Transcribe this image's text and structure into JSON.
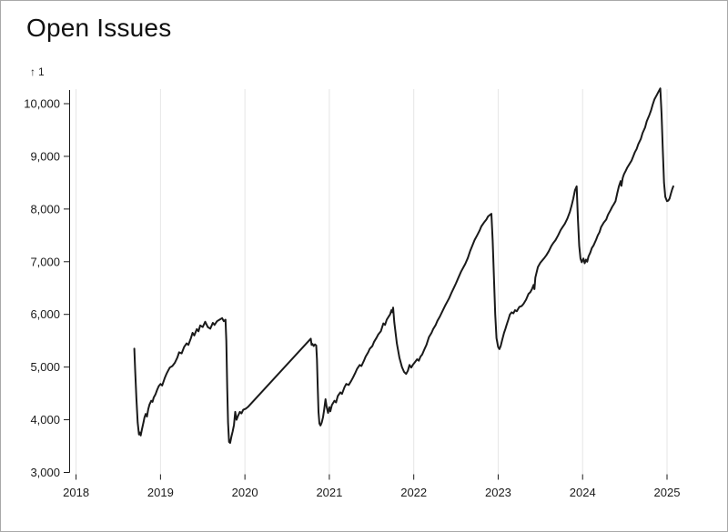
{
  "title": "Open Issues",
  "y_axis": {
    "arrow": "↑",
    "label": "1"
  },
  "colors": {
    "background": "#ffffff",
    "border": "#a9a9a9",
    "title_text": "#111111",
    "axis_text": "#1a1a1a",
    "grid_line": "#e6e6e6",
    "data_line": "#1a1a1a"
  },
  "chart_data": {
    "type": "line",
    "title": "Open Issues",
    "xlabel": "",
    "ylabel": "1",
    "legend": "none",
    "grid": "vertical-only",
    "x_domain": [
      2018,
      2025.1
    ],
    "y_domain": [
      3000,
      10300
    ],
    "x_ticks": [
      {
        "label": "2018",
        "value": 2018
      },
      {
        "label": "2019",
        "value": 2019
      },
      {
        "label": "2020",
        "value": 2020
      },
      {
        "label": "2021",
        "value": 2021
      },
      {
        "label": "2022",
        "value": 2022
      },
      {
        "label": "2023",
        "value": 2023
      },
      {
        "label": "2024",
        "value": 2024
      },
      {
        "label": "2025",
        "value": 2025
      }
    ],
    "y_ticks": [
      {
        "label": "3,000",
        "value": 3000
      },
      {
        "label": "4,000",
        "value": 4000
      },
      {
        "label": "5,000",
        "value": 5000
      },
      {
        "label": "6,000",
        "value": 6000
      },
      {
        "label": "7,000",
        "value": 7000
      },
      {
        "label": "8,000",
        "value": 8000
      },
      {
        "label": "9,000",
        "value": 9000
      },
      {
        "label": "10,000",
        "value": 10000
      }
    ],
    "series": [
      {
        "name": "1",
        "points": [
          [
            2018.69,
            5350
          ],
          [
            2018.7,
            4950
          ],
          [
            2018.715,
            4400
          ],
          [
            2018.73,
            3950
          ],
          [
            2018.745,
            3720
          ],
          [
            2018.755,
            3760
          ],
          [
            2018.765,
            3700
          ],
          [
            2018.78,
            3820
          ],
          [
            2018.8,
            3960
          ],
          [
            2018.81,
            4040
          ],
          [
            2018.825,
            4110
          ],
          [
            2018.84,
            4060
          ],
          [
            2018.855,
            4200
          ],
          [
            2018.87,
            4290
          ],
          [
            2018.89,
            4360
          ],
          [
            2018.905,
            4340
          ],
          [
            2018.92,
            4420
          ],
          [
            2018.94,
            4480
          ],
          [
            2018.96,
            4570
          ],
          [
            2018.98,
            4640
          ],
          [
            2019.0,
            4680
          ],
          [
            2019.02,
            4650
          ],
          [
            2019.05,
            4790
          ],
          [
            2019.07,
            4870
          ],
          [
            2019.09,
            4930
          ],
          [
            2019.11,
            4990
          ],
          [
            2019.14,
            5020
          ],
          [
            2019.17,
            5080
          ],
          [
            2019.2,
            5180
          ],
          [
            2019.22,
            5280
          ],
          [
            2019.25,
            5260
          ],
          [
            2019.28,
            5380
          ],
          [
            2019.31,
            5450
          ],
          [
            2019.33,
            5420
          ],
          [
            2019.36,
            5550
          ],
          [
            2019.38,
            5650
          ],
          [
            2019.4,
            5600
          ],
          [
            2019.43,
            5720
          ],
          [
            2019.45,
            5680
          ],
          [
            2019.47,
            5790
          ],
          [
            2019.5,
            5760
          ],
          [
            2019.53,
            5860
          ],
          [
            2019.56,
            5760
          ],
          [
            2019.59,
            5730
          ],
          [
            2019.62,
            5840
          ],
          [
            2019.64,
            5800
          ],
          [
            2019.67,
            5870
          ],
          [
            2019.7,
            5900
          ],
          [
            2019.73,
            5930
          ],
          [
            2019.75,
            5870
          ],
          [
            2019.77,
            5900
          ],
          [
            2019.78,
            5500
          ],
          [
            2019.79,
            4600
          ],
          [
            2019.8,
            3950
          ],
          [
            2019.812,
            3580
          ],
          [
            2019.825,
            3560
          ],
          [
            2019.84,
            3680
          ],
          [
            2019.855,
            3780
          ],
          [
            2019.87,
            3900
          ],
          [
            2019.885,
            4150
          ],
          [
            2019.9,
            4000
          ],
          [
            2019.92,
            4080
          ],
          [
            2019.94,
            4150
          ],
          [
            2019.96,
            4120
          ],
          [
            2019.98,
            4190
          ],
          [
            2020.01,
            4210
          ],
          [
            2020.04,
            4250
          ],
          [
            2020.78,
            5540
          ],
          [
            2020.79,
            5420
          ],
          [
            2020.8,
            5440
          ],
          [
            2020.815,
            5400
          ],
          [
            2020.83,
            5430
          ],
          [
            2020.845,
            5410
          ],
          [
            2020.853,
            5150
          ],
          [
            2020.862,
            4650
          ],
          [
            2020.872,
            4150
          ],
          [
            2020.882,
            3930
          ],
          [
            2020.895,
            3890
          ],
          [
            2020.91,
            3950
          ],
          [
            2020.925,
            4050
          ],
          [
            2020.94,
            4200
          ],
          [
            2020.955,
            4390
          ],
          [
            2020.97,
            4230
          ],
          [
            2020.985,
            4130
          ],
          [
            2021.0,
            4240
          ],
          [
            2021.012,
            4160
          ],
          [
            2021.03,
            4280
          ],
          [
            2021.06,
            4360
          ],
          [
            2021.08,
            4330
          ],
          [
            2021.1,
            4450
          ],
          [
            2021.13,
            4520
          ],
          [
            2021.15,
            4490
          ],
          [
            2021.18,
            4620
          ],
          [
            2021.2,
            4680
          ],
          [
            2021.23,
            4660
          ],
          [
            2021.26,
            4740
          ],
          [
            2021.28,
            4800
          ],
          [
            2021.31,
            4900
          ],
          [
            2021.33,
            4970
          ],
          [
            2021.36,
            5040
          ],
          [
            2021.38,
            5020
          ],
          [
            2021.41,
            5120
          ],
          [
            2021.43,
            5200
          ],
          [
            2021.46,
            5280
          ],
          [
            2021.48,
            5350
          ],
          [
            2021.51,
            5400
          ],
          [
            2021.53,
            5480
          ],
          [
            2021.56,
            5560
          ],
          [
            2021.58,
            5620
          ],
          [
            2021.61,
            5680
          ],
          [
            2021.64,
            5830
          ],
          [
            2021.66,
            5800
          ],
          [
            2021.68,
            5900
          ],
          [
            2021.7,
            5950
          ],
          [
            2021.72,
            6000
          ],
          [
            2021.735,
            6080
          ],
          [
            2021.745,
            6040
          ],
          [
            2021.755,
            6130
          ],
          [
            2021.77,
            5850
          ],
          [
            2021.8,
            5450
          ],
          [
            2021.83,
            5180
          ],
          [
            2021.86,
            5000
          ],
          [
            2021.885,
            4910
          ],
          [
            2021.91,
            4870
          ],
          [
            2021.93,
            4930
          ],
          [
            2021.95,
            5040
          ],
          [
            2021.97,
            4990
          ],
          [
            2021.99,
            5045
          ],
          [
            2022.01,
            5085
          ],
          [
            2022.04,
            5150
          ],
          [
            2022.06,
            5120
          ],
          [
            2022.08,
            5200
          ],
          [
            2022.1,
            5240
          ],
          [
            2022.13,
            5350
          ],
          [
            2022.15,
            5420
          ],
          [
            2022.18,
            5570
          ],
          [
            2022.21,
            5650
          ],
          [
            2022.23,
            5720
          ],
          [
            2022.26,
            5800
          ],
          [
            2022.28,
            5880
          ],
          [
            2022.31,
            5960
          ],
          [
            2022.34,
            6060
          ],
          [
            2022.37,
            6160
          ],
          [
            2022.4,
            6250
          ],
          [
            2022.42,
            6310
          ],
          [
            2022.45,
            6420
          ],
          [
            2022.48,
            6520
          ],
          [
            2022.5,
            6590
          ],
          [
            2022.53,
            6700
          ],
          [
            2022.56,
            6810
          ],
          [
            2022.59,
            6900
          ],
          [
            2022.61,
            6960
          ],
          [
            2022.64,
            7070
          ],
          [
            2022.67,
            7210
          ],
          [
            2022.7,
            7330
          ],
          [
            2022.72,
            7410
          ],
          [
            2022.75,
            7500
          ],
          [
            2022.78,
            7590
          ],
          [
            2022.8,
            7670
          ],
          [
            2022.83,
            7740
          ],
          [
            2022.86,
            7800
          ],
          [
            2022.88,
            7860
          ],
          [
            2022.905,
            7890
          ],
          [
            2022.92,
            7910
          ],
          [
            2022.935,
            7400
          ],
          [
            2022.95,
            6700
          ],
          [
            2022.965,
            6000
          ],
          [
            2022.98,
            5550
          ],
          [
            2023.0,
            5380
          ],
          [
            2023.015,
            5340
          ],
          [
            2023.03,
            5400
          ],
          [
            2023.05,
            5530
          ],
          [
            2023.07,
            5650
          ],
          [
            2023.085,
            5720
          ],
          [
            2023.1,
            5800
          ],
          [
            2023.12,
            5900
          ],
          [
            2023.14,
            6000
          ],
          [
            2023.16,
            6040
          ],
          [
            2023.18,
            6020
          ],
          [
            2023.2,
            6080
          ],
          [
            2023.22,
            6060
          ],
          [
            2023.25,
            6140
          ],
          [
            2023.28,
            6160
          ],
          [
            2023.3,
            6200
          ],
          [
            2023.33,
            6280
          ],
          [
            2023.36,
            6390
          ],
          [
            2023.38,
            6420
          ],
          [
            2023.4,
            6480
          ],
          [
            2023.42,
            6560
          ],
          [
            2023.43,
            6480
          ],
          [
            2023.44,
            6700
          ],
          [
            2023.47,
            6900
          ],
          [
            2023.5,
            6980
          ],
          [
            2023.52,
            7020
          ],
          [
            2023.55,
            7080
          ],
          [
            2023.57,
            7120
          ],
          [
            2023.6,
            7200
          ],
          [
            2023.63,
            7300
          ],
          [
            2023.65,
            7350
          ],
          [
            2023.68,
            7410
          ],
          [
            2023.71,
            7500
          ],
          [
            2023.74,
            7600
          ],
          [
            2023.76,
            7650
          ],
          [
            2023.79,
            7720
          ],
          [
            2023.82,
            7820
          ],
          [
            2023.85,
            7950
          ],
          [
            2023.87,
            8070
          ],
          [
            2023.89,
            8200
          ],
          [
            2023.91,
            8360
          ],
          [
            2023.93,
            8430
          ],
          [
            2023.945,
            7800
          ],
          [
            2023.96,
            7300
          ],
          [
            2023.975,
            7060
          ],
          [
            2023.99,
            6990
          ],
          [
            2024.01,
            7060
          ],
          [
            2024.025,
            6970
          ],
          [
            2024.04,
            7040
          ],
          [
            2024.055,
            7000
          ],
          [
            2024.07,
            7100
          ],
          [
            2024.09,
            7170
          ],
          [
            2024.11,
            7260
          ],
          [
            2024.13,
            7310
          ],
          [
            2024.16,
            7420
          ],
          [
            2024.18,
            7500
          ],
          [
            2024.2,
            7560
          ],
          [
            2024.22,
            7660
          ],
          [
            2024.25,
            7740
          ],
          [
            2024.28,
            7800
          ],
          [
            2024.3,
            7890
          ],
          [
            2024.33,
            7975
          ],
          [
            2024.35,
            8040
          ],
          [
            2024.37,
            8090
          ],
          [
            2024.39,
            8150
          ],
          [
            2024.41,
            8300
          ],
          [
            2024.43,
            8430
          ],
          [
            2024.45,
            8530
          ],
          [
            2024.46,
            8440
          ],
          [
            2024.475,
            8590
          ],
          [
            2024.49,
            8660
          ],
          [
            2024.51,
            8720
          ],
          [
            2024.53,
            8790
          ],
          [
            2024.55,
            8840
          ],
          [
            2024.58,
            8920
          ],
          [
            2024.6,
            9000
          ],
          [
            2024.62,
            9080
          ],
          [
            2024.64,
            9140
          ],
          [
            2024.66,
            9230
          ],
          [
            2024.69,
            9330
          ],
          [
            2024.71,
            9440
          ],
          [
            2024.74,
            9550
          ],
          [
            2024.76,
            9665
          ],
          [
            2024.79,
            9780
          ],
          [
            2024.81,
            9870
          ],
          [
            2024.83,
            9980
          ],
          [
            2024.85,
            10080
          ],
          [
            2024.88,
            10170
          ],
          [
            2024.9,
            10230
          ],
          [
            2024.92,
            10290
          ],
          [
            2024.935,
            9800
          ],
          [
            2024.95,
            9100
          ],
          [
            2024.965,
            8500
          ],
          [
            2024.98,
            8230
          ],
          [
            2025.0,
            8150
          ],
          [
            2025.015,
            8160
          ],
          [
            2025.03,
            8200
          ],
          [
            2025.045,
            8290
          ],
          [
            2025.06,
            8370
          ],
          [
            2025.075,
            8430
          ]
        ]
      }
    ]
  }
}
